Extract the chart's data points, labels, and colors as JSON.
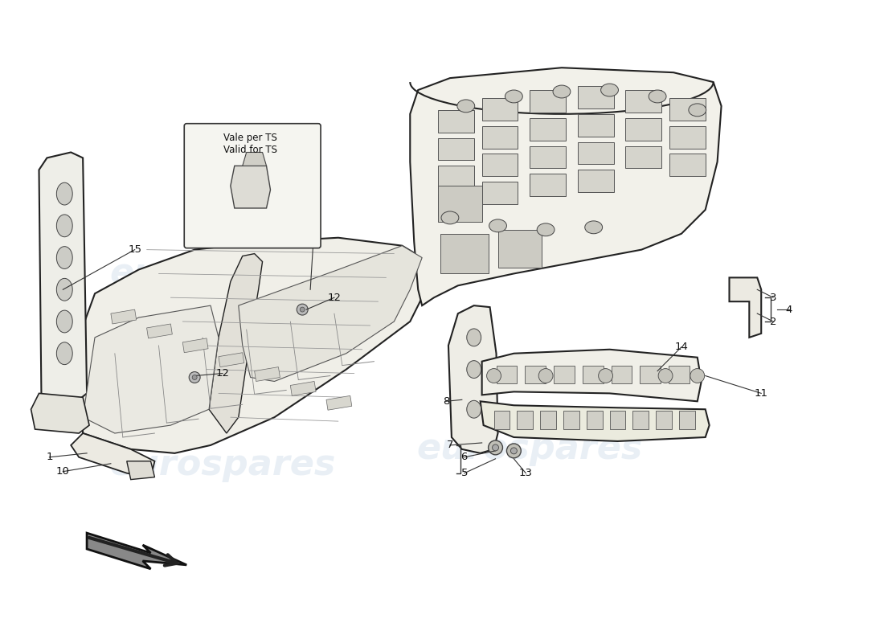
{
  "background_color": "#ffffff",
  "watermark_text": "eurospares",
  "watermark_color": "#c8d8e8",
  "watermark_alpha": 0.4,
  "callout_box_text": [
    "Vale per TS",
    "Valid for TS"
  ],
  "line_color": "#222222",
  "fill_color_light": "#f5f5f0",
  "fill_color_mid": "#e8e8e4",
  "fill_color_dark": "#d8d8d4"
}
